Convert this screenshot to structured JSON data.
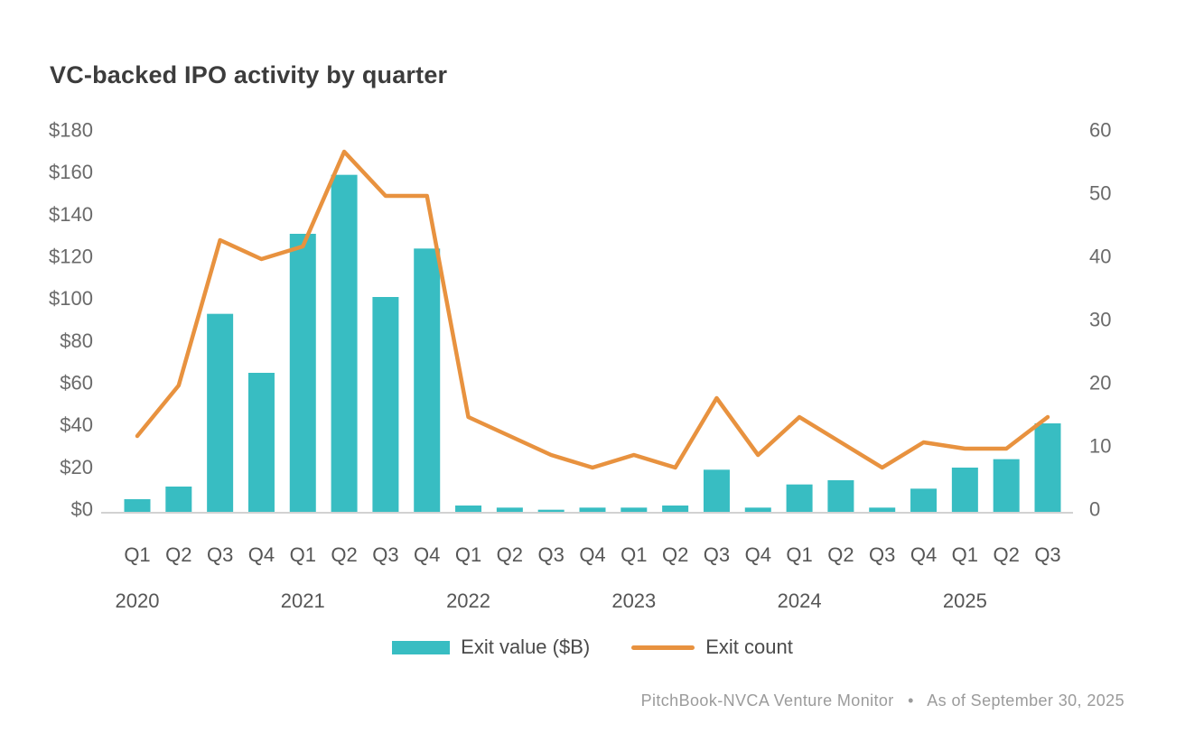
{
  "chart_data": {
    "type": "bar+line",
    "title": "VC-backed IPO activity by quarter",
    "categories": [
      "Q1",
      "Q2",
      "Q3",
      "Q4",
      "Q1",
      "Q2",
      "Q3",
      "Q4",
      "Q1",
      "Q2",
      "Q3",
      "Q4",
      "Q1",
      "Q2",
      "Q3",
      "Q4",
      "Q1",
      "Q2",
      "Q3",
      "Q4",
      "Q1",
      "Q2",
      "Q3"
    ],
    "years": [
      {
        "label": "2020",
        "quarter_index": 0
      },
      {
        "label": "2021",
        "quarter_index": 4
      },
      {
        "label": "2022",
        "quarter_index": 8
      },
      {
        "label": "2023",
        "quarter_index": 12
      },
      {
        "label": "2024",
        "quarter_index": 16
      },
      {
        "label": "2025",
        "quarter_index": 20
      }
    ],
    "series": [
      {
        "name": "Exit value ($B)",
        "type": "bar",
        "axis": "left",
        "values": [
          6,
          12,
          94,
          66,
          132,
          160,
          102,
          125,
          3,
          2,
          1,
          2,
          2,
          3,
          20,
          2,
          13,
          15,
          2,
          11,
          21,
          25,
          42
        ]
      },
      {
        "name": "Exit count",
        "type": "line",
        "axis": "right",
        "values": [
          12,
          20,
          43,
          40,
          42,
          57,
          50,
          50,
          15,
          12,
          9,
          7,
          9,
          7,
          18,
          9,
          15,
          11,
          7,
          11,
          10,
          10,
          15
        ]
      }
    ],
    "left_axis": {
      "min": 0,
      "max": 180,
      "ticks": [
        {
          "label": "$0",
          "value": 0
        },
        {
          "label": "$20",
          "value": 20
        },
        {
          "label": "$40",
          "value": 40
        },
        {
          "label": "$60",
          "value": 60
        },
        {
          "label": "$80",
          "value": 80
        },
        {
          "label": "$100",
          "value": 100
        },
        {
          "label": "$120",
          "value": 120
        },
        {
          "label": "$140",
          "value": 140
        },
        {
          "label": "$160",
          "value": 160
        },
        {
          "label": "$180",
          "value": 180
        }
      ]
    },
    "right_axis": {
      "min": 0,
      "max": 60,
      "ticks": [
        {
          "label": "0",
          "value": 0
        },
        {
          "label": "10",
          "value": 10
        },
        {
          "label": "20",
          "value": 20
        },
        {
          "label": "30",
          "value": 30
        },
        {
          "label": "40",
          "value": 40
        },
        {
          "label": "50",
          "value": 50
        },
        {
          "label": "60",
          "value": 60
        }
      ]
    },
    "grid": false,
    "legend_position": "bottom"
  },
  "footer": {
    "source": "PitchBook-NVCA Venture Monitor",
    "separator": "•",
    "as_of": "As of September 30, 2025"
  },
  "colors": {
    "bar_teal": "#38BDC2",
    "line_orange": "#E8923F",
    "title_text": "#3C3C3C",
    "axis_text": "#6A6A6A",
    "category_text": "#565656",
    "legend_text": "#4A4A4A",
    "footer_text": "#9B9B9B",
    "baseline_gray": "#D2D2D2"
  }
}
